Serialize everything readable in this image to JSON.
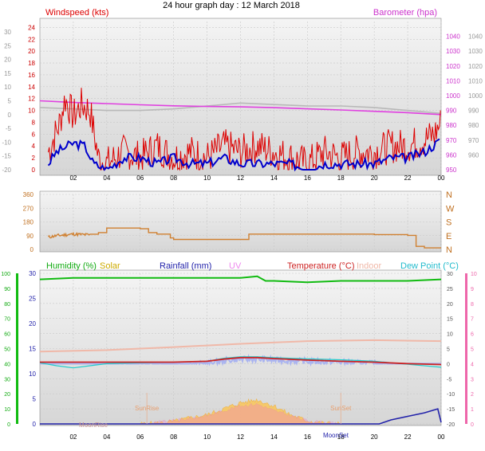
{
  "page_title": "24 hour graph day : 12 March 2018",
  "colors": {
    "windspeed": "#dd0000",
    "wind_avg": "#0000cc",
    "barometer": "#e040e0",
    "baro_gray": "#b8b8b8",
    "direction": "#d08030",
    "humidity": "#11bb11",
    "solar": "#ccaa00",
    "rainfall": "#2222aa",
    "uv": "#ee88ee",
    "temperature": "#cc2222",
    "indoor": "#f0b8a8",
    "dewpoint": "#22cccc"
  },
  "x_ticks": [
    "02",
    "04",
    "06",
    "08",
    "10",
    "12",
    "14",
    "16",
    "18",
    "20",
    "22",
    "00"
  ],
  "chart_data": [
    {
      "type": "line",
      "labels": {
        "left": "Windspeed (kts)",
        "right": "Barometer (hpa)"
      },
      "left_ticks": [
        "24",
        "22",
        "20",
        "18",
        "16",
        "14",
        "12",
        "10",
        "8",
        "6",
        "4",
        "2",
        "0"
      ],
      "far_left_ticks": [
        "30",
        "25",
        "20",
        "15",
        "10",
        "5",
        "0",
        "-5",
        "-10",
        "-15",
        "-20"
      ],
      "right_ticks": [
        "1040",
        "1030",
        "1020",
        "1010",
        "1000",
        "990",
        "980",
        "970",
        "960",
        "950"
      ],
      "right_ticks_outer": [
        "1040",
        "1030",
        "1020",
        "1010",
        "1000",
        "990",
        "980",
        "970",
        "960"
      ],
      "ylim_left": [
        0,
        25
      ],
      "ylim_right": [
        950,
        1050
      ],
      "series": [
        {
          "name": "Windspeed (kts)",
          "x": [
            0.5,
            1.2,
            1.5,
            2.0,
            2.5,
            3.0,
            3.5,
            4.0,
            5.0,
            6.0,
            7.0,
            8.0,
            9.0,
            10.0,
            11.0,
            12.0,
            13.0,
            14.0,
            15.0,
            16.0,
            17.0,
            18.0,
            19.0,
            20.0,
            21.0,
            22.0,
            23.0,
            23.6,
            24.0
          ],
          "y": [
            3,
            8,
            12,
            9,
            11,
            10,
            2,
            1,
            3,
            2,
            4,
            2,
            3,
            2,
            4,
            3,
            4,
            3,
            2,
            1,
            3,
            2,
            3,
            3,
            4,
            4,
            5,
            6,
            8
          ]
        },
        {
          "name": "Wind avg",
          "x": [
            0.5,
            1.0,
            2.0,
            2.7,
            3.2,
            4.0,
            5.0,
            6.0,
            7.0,
            8.0,
            9.0,
            10.0,
            11.0,
            12.0,
            13.0,
            14.0,
            15.0,
            16.0,
            17.0,
            18.0,
            19.0,
            20.0,
            21.0,
            22.0,
            23.0,
            24.0
          ],
          "y": [
            1,
            3,
            4.5,
            4,
            1,
            0,
            2,
            2,
            1,
            2,
            1,
            1,
            2,
            1,
            1,
            1,
            1,
            0,
            1,
            1,
            1,
            1,
            2,
            2,
            3,
            5
          ]
        },
        {
          "name": "Barometer (hpa)",
          "x": [
            0,
            2,
            4,
            6,
            8,
            10,
            12,
            14,
            16,
            18,
            20,
            22,
            24
          ],
          "y": [
            996.5,
            995.4,
            994.6,
            993.8,
            993.1,
            992.7,
            992.4,
            991.9,
            991.1,
            990.3,
            989.4,
            988.5,
            987.2
          ]
        },
        {
          "name": "Barometer trace",
          "x": [
            0,
            2,
            4,
            6,
            8,
            10,
            12,
            14,
            16,
            18,
            20,
            22,
            24
          ],
          "y": [
            992,
            991,
            990,
            990,
            991,
            993,
            995,
            994,
            993,
            993,
            992,
            990,
            988
          ]
        }
      ]
    },
    {
      "type": "line",
      "left_ticks": [
        "360",
        "270",
        "180",
        "90",
        "0"
      ],
      "right_ticks": [
        "N",
        "W",
        "S",
        "E",
        "N"
      ],
      "ylim": [
        0,
        360
      ],
      "series": [
        {
          "name": "Wind direction",
          "x": [
            0.5,
            1.0,
            2.0,
            3.0,
            3.5,
            4.0,
            5.0,
            6.0,
            6.5,
            7.0,
            7.8,
            8.0,
            10.0,
            12.0,
            12.5,
            14.0,
            16.0,
            18.0,
            20.0,
            22.0,
            22.5,
            23.0,
            24.0
          ],
          "y": [
            80,
            90,
            100,
            95,
            110,
            140,
            140,
            135,
            110,
            100,
            75,
            65,
            65,
            65,
            100,
            100,
            100,
            100,
            97,
            92,
            20,
            10,
            10
          ]
        }
      ]
    },
    {
      "type": "line",
      "labels": {
        "humidity": "Humidity (%)",
        "solar": "Solar",
        "rainfall": "Rainfall (mm)",
        "uv": "UV",
        "temperature": "Temperature (°C)",
        "indoor": "Indoor",
        "dewpoint": "Dew Point (°C)"
      },
      "humidity_ticks": [
        "100",
        "90",
        "80",
        "70",
        "60",
        "50",
        "40",
        "30",
        "20",
        "10",
        "0"
      ],
      "rain_ticks": [
        "30",
        "25",
        "20",
        "15",
        "10",
        "5",
        "0"
      ],
      "temp_ticks": [
        "30",
        "25",
        "20",
        "15",
        "10",
        "5",
        "0",
        "-5",
        "-10",
        "-15",
        "-20"
      ],
      "uv_ticks": [
        "10",
        "9",
        "8",
        "7",
        "6",
        "5",
        "4",
        "3",
        "2",
        "1",
        "0"
      ],
      "ylim_humidity": [
        0,
        100
      ],
      "ylim_temperature": [
        -20,
        30
      ],
      "annotations": [
        "SunRise",
        "SunSet",
        "MoonRise",
        "MoonSet"
      ],
      "series": [
        {
          "name": "Humidity (%)",
          "x": [
            0,
            2,
            4,
            6,
            8,
            10,
            12,
            13,
            13.5,
            14,
            16,
            18,
            20,
            22,
            24
          ],
          "y": [
            96,
            97,
            97,
            97,
            97,
            97,
            97,
            98,
            95,
            95,
            94,
            95,
            95,
            95,
            96
          ]
        },
        {
          "name": "Temperature (°C)",
          "x": [
            0,
            2,
            4,
            6,
            8,
            10,
            11,
            12,
            13,
            14,
            16,
            18,
            20,
            22,
            24
          ],
          "y": [
            0.5,
            0.5,
            0.5,
            0.5,
            0.5,
            0.8,
            1.5,
            2.0,
            2.0,
            1.7,
            1.2,
            0.8,
            0.5,
            0,
            -0.3
          ]
        },
        {
          "name": "Dew Point (°C)",
          "x": [
            0,
            1,
            2,
            3,
            4,
            6,
            8,
            10,
            11,
            12,
            13,
            14,
            16,
            18,
            20,
            22,
            24
          ],
          "y": [
            -0.5,
            -1.5,
            -2.2,
            -1.5,
            -0.8,
            -0.5,
            -0.3,
            0,
            1,
            1.5,
            1.5,
            1.2,
            0.8,
            0.5,
            0,
            -1,
            -2
          ]
        },
        {
          "name": "Indoor",
          "x": [
            0,
            4,
            8,
            12,
            16,
            20,
            24
          ],
          "y": [
            4,
            4.5,
            5.5,
            6.6,
            7.5,
            7.8,
            7.5
          ]
        },
        {
          "name": "Solar",
          "x": [
            6,
            7,
            8,
            9,
            10,
            11,
            12,
            13,
            14,
            15,
            16,
            17,
            18
          ],
          "y": [
            0,
            0.2,
            0.8,
            2,
            3,
            5,
            7,
            8,
            6,
            3,
            1,
            0.2,
            0
          ]
        },
        {
          "name": "UV",
          "x": [
            6,
            8,
            10,
            11,
            12,
            13,
            14,
            16,
            18
          ],
          "y": [
            0,
            0.2,
            0.5,
            0.8,
            1.1,
            1.2,
            0.8,
            0.2,
            0
          ]
        },
        {
          "name": "Rainfall (mm)",
          "x": [
            0,
            20.3,
            21,
            22,
            23,
            23.8,
            24
          ],
          "y": [
            0,
            0,
            0.8,
            1.5,
            2.2,
            3,
            0.3
          ]
        }
      ]
    }
  ]
}
